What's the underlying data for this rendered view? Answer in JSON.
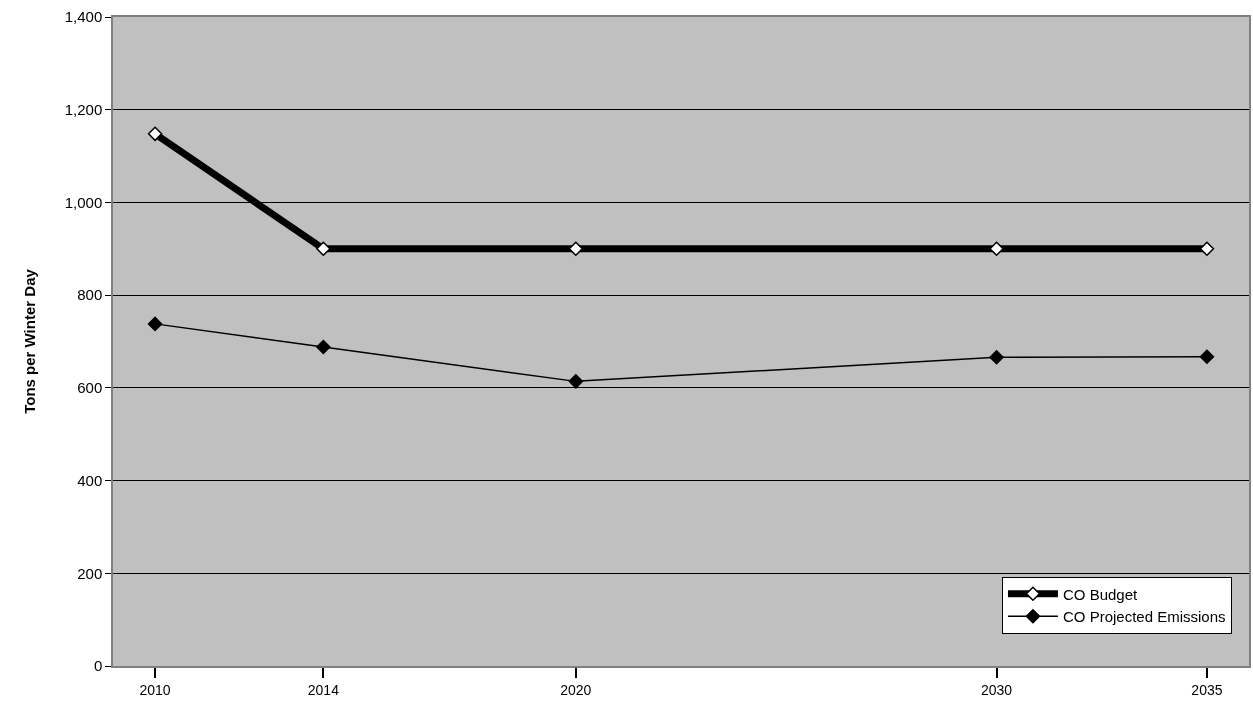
{
  "chart_data": {
    "type": "line",
    "ylabel": "Tons per Winter Day",
    "x": [
      2010,
      2014,
      2020,
      2030,
      2035
    ],
    "series": [
      {
        "name": "CO Budget",
        "color": "#000000",
        "values": [
          1148,
          900,
          900,
          900,
          900
        ]
      },
      {
        "name": "CO Projected Emissions",
        "color": "#000000",
        "values": [
          738,
          688,
          614,
          666,
          667
        ]
      }
    ],
    "xlim": [
      2009,
      2036
    ],
    "xticks": [
      2010,
      2014,
      2020,
      2030,
      2035
    ],
    "ylim": [
      0,
      1400
    ],
    "yticks": [
      {
        "value": 0,
        "label": "0"
      },
      {
        "value": 200,
        "label": "200"
      },
      {
        "value": 400,
        "label": "400"
      },
      {
        "value": 600,
        "label": "600"
      },
      {
        "value": 800,
        "label": "800"
      },
      {
        "value": 1000,
        "label": "1,000"
      },
      {
        "value": 1200,
        "label": "1,200"
      },
      {
        "value": 1400,
        "label": "1,400"
      }
    ],
    "grid": "y",
    "legend": "bottom right",
    "marker": "diamond",
    "line_style": "solid"
  }
}
